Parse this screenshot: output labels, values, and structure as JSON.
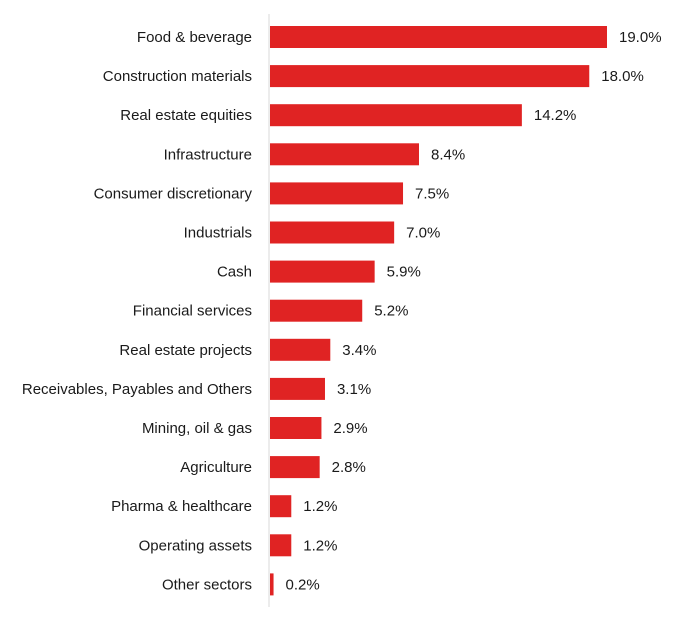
{
  "chart_data": {
    "type": "bar",
    "orientation": "horizontal",
    "categories": [
      "Food & beverage",
      "Construction materials",
      "Real estate equities",
      "Infrastructure",
      "Consumer discretionary",
      "Industrials",
      "Cash",
      "Financial services",
      "Real estate projects",
      "Receivables, Payables and Others",
      "Mining, oil & gas",
      "Agriculture",
      "Pharma & healthcare",
      "Operating assets",
      "Other sectors"
    ],
    "values": [
      19.0,
      18.0,
      14.2,
      8.4,
      7.5,
      7.0,
      5.9,
      5.2,
      3.4,
      3.1,
      2.9,
      2.8,
      1.2,
      1.2,
      0.2
    ],
    "value_labels": [
      "19.0%",
      "18.0%",
      "14.2%",
      "8.4%",
      "7.5%",
      "7.0%",
      "5.9%",
      "5.2%",
      "3.4%",
      "3.1%",
      "2.9%",
      "2.8%",
      "1.2%",
      "1.2%",
      "0.2%"
    ],
    "bar_color": "#e02323",
    "xlim": [
      0,
      19.0
    ],
    "grid": false,
    "legend": "none"
  }
}
